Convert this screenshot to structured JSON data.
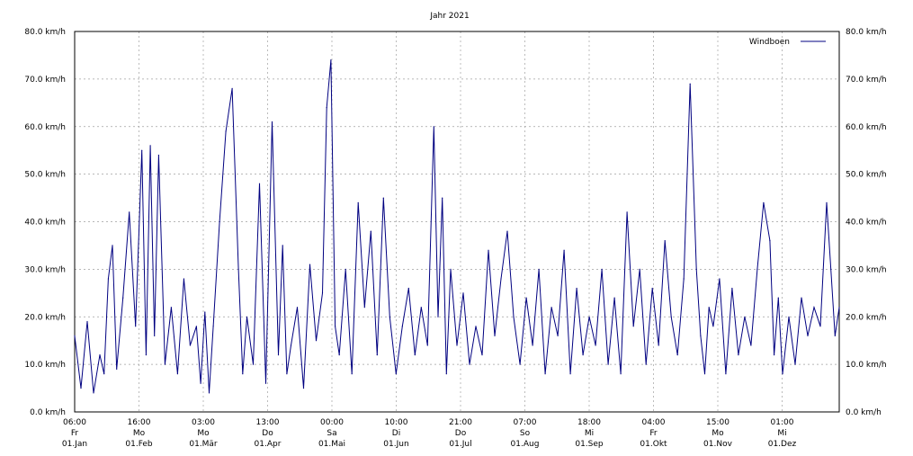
{
  "chart_data": {
    "type": "line",
    "title": "Jahr 2021",
    "xlabel": "",
    "ylabel": "",
    "ylim": [
      0,
      80
    ],
    "grid": true,
    "legend_position": "top-right",
    "y_ticks": [
      "0.0 km/h",
      "10.0 km/h",
      "20.0 km/h",
      "30.0 km/h",
      "40.0 km/h",
      "50.0 km/h",
      "60.0 km/h",
      "70.0 km/h",
      "80.0 km/h"
    ],
    "y_tick_values": [
      0,
      10,
      20,
      30,
      40,
      50,
      60,
      70,
      80
    ],
    "x_ticks": [
      {
        "time": "06:00",
        "day": "Fr",
        "date": "01.Jan"
      },
      {
        "time": "16:00",
        "day": "Mo",
        "date": "01.Feb"
      },
      {
        "time": "03:00",
        "day": "Mo",
        "date": "01.Mär"
      },
      {
        "time": "13:00",
        "day": "Do",
        "date": "01.Apr"
      },
      {
        "time": "00:00",
        "day": "Sa",
        "date": "01.Mai"
      },
      {
        "time": "10:00",
        "day": "Di",
        "date": "01.Jun"
      },
      {
        "time": "21:00",
        "day": "Do",
        "date": "01.Jul"
      },
      {
        "time": "07:00",
        "day": "So",
        "date": "01.Aug"
      },
      {
        "time": "18:00",
        "day": "Mi",
        "date": "01.Sep"
      },
      {
        "time": "04:00",
        "day": "Fr",
        "date": "01.Okt"
      },
      {
        "time": "15:00",
        "day": "Mo",
        "date": "01.Nov"
      },
      {
        "time": "01:00",
        "day": "Mi",
        "date": "01.Dez"
      }
    ],
    "series": [
      {
        "name": "Windboen",
        "color": "#000080",
        "x_unit": "day of year 2021",
        "x": [
          1,
          4,
          7,
          10,
          13,
          15,
          17,
          19,
          21,
          24,
          27,
          30,
          33,
          35,
          37,
          39,
          41,
          44,
          47,
          50,
          53,
          56,
          59,
          61,
          63,
          65,
          67,
          70,
          73,
          76,
          79,
          81,
          83,
          86,
          89,
          92,
          95,
          98,
          100,
          102,
          104,
          107,
          110,
          113,
          116,
          119,
          121,
          123,
          125,
          127,
          130,
          133,
          136,
          139,
          142,
          145,
          148,
          151,
          154,
          157,
          160,
          163,
          166,
          169,
          172,
          174,
          176,
          178,
          180,
          183,
          186,
          189,
          192,
          195,
          198,
          201,
          204,
          207,
          210,
          213,
          216,
          219,
          222,
          225,
          228,
          231,
          234,
          237,
          240,
          243,
          246,
          249,
          252,
          255,
          258,
          261,
          264,
          267,
          270,
          273,
          276,
          279,
          282,
          285,
          288,
          291,
          294,
          297,
          299,
          301,
          303,
          305,
          308,
          311,
          314,
          317,
          320,
          323,
          326,
          329,
          332,
          334,
          336,
          338,
          341,
          344,
          347,
          350,
          353,
          356,
          359,
          361,
          363,
          365
        ],
        "values": [
          16,
          5,
          19,
          4,
          12,
          8,
          28,
          35,
          9,
          24,
          42,
          18,
          55,
          12,
          56,
          16,
          54,
          10,
          22,
          8,
          28,
          14,
          18,
          6,
          21,
          4,
          18,
          40,
          59,
          68,
          30,
          8,
          20,
          10,
          48,
          6,
          61,
          12,
          35,
          8,
          14,
          22,
          5,
          31,
          15,
          25,
          64,
          74,
          18,
          12,
          30,
          8,
          44,
          22,
          38,
          12,
          45,
          20,
          8,
          18,
          26,
          12,
          22,
          14,
          60,
          20,
          45,
          8,
          30,
          14,
          25,
          10,
          18,
          12,
          34,
          16,
          28,
          38,
          20,
          10,
          24,
          14,
          30,
          8,
          22,
          16,
          34,
          8,
          26,
          12,
          20,
          14,
          30,
          10,
          24,
          8,
          42,
          18,
          30,
          10,
          26,
          14,
          36,
          20,
          12,
          28,
          69,
          30,
          16,
          8,
          22,
          18,
          28,
          8,
          26,
          12,
          20,
          14,
          30,
          44,
          36,
          12,
          24,
          8,
          20,
          10,
          24,
          16,
          22,
          18,
          44,
          30,
          16,
          22
        ]
      }
    ]
  }
}
